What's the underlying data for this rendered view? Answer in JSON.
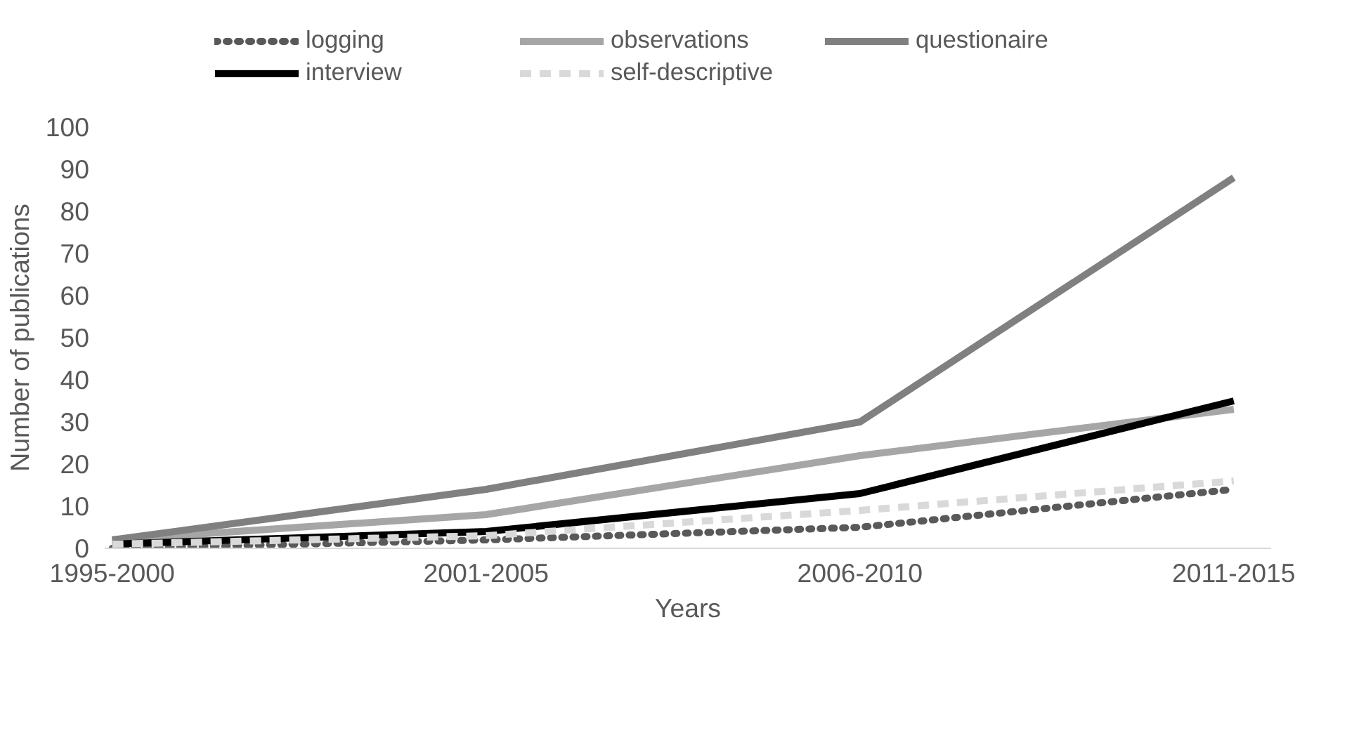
{
  "chart_data": {
    "type": "line",
    "xlabel": "Years",
    "ylabel": "Number of publications",
    "categories": [
      "1995-2000",
      "2001-2005",
      "2006-2010",
      "2011-2015"
    ],
    "series": [
      {
        "name": "logging",
        "color": "#595959",
        "line_style": "dotted",
        "values": [
          0,
          2,
          5,
          14
        ]
      },
      {
        "name": "observations",
        "color": "#a6a6a6",
        "line_style": "solid",
        "values": [
          2,
          8,
          22,
          33
        ]
      },
      {
        "name": "questionaire",
        "color": "#808080",
        "line_style": "solid",
        "values": [
          2,
          14,
          30,
          88
        ]
      },
      {
        "name": "interview",
        "color": "#000000",
        "line_style": "solid",
        "values": [
          1,
          4,
          13,
          35
        ]
      },
      {
        "name": "self-descriptive",
        "color": "#d9d9d9",
        "line_style": "dashed",
        "values": [
          1,
          3,
          9,
          16
        ]
      }
    ],
    "ylim": [
      0,
      100
    ],
    "yticks": [
      0,
      10,
      20,
      30,
      40,
      50,
      60,
      70,
      80,
      90,
      100
    ],
    "grid": false,
    "legend": "top",
    "marker": "none"
  }
}
